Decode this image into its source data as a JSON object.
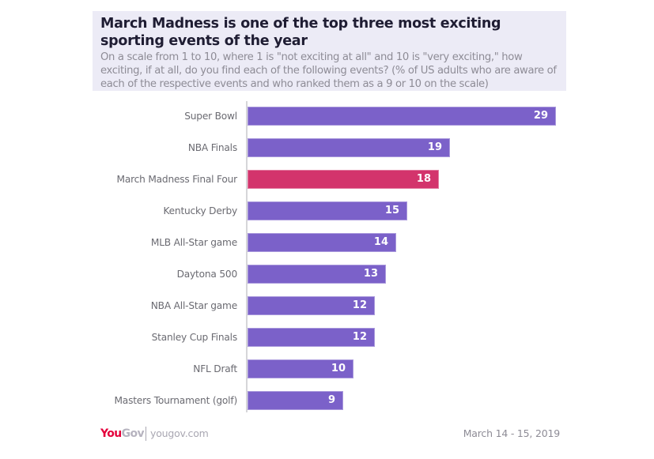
{
  "header": {
    "title": "March Madness is one of the top three most exciting sporting events of the year",
    "subtitle": "On a scale from 1 to 10, where 1 is \"not exciting at all\" and 10 is \"very exciting,\" how exciting, if at all, do you find each of the following events? (% of US adults who are aware of each of the respective events and who ranked them as a 9 or 10 on the scale)"
  },
  "footer": {
    "logo_you": "You",
    "logo_gov": "Gov",
    "url": "yougov.com",
    "date": "March 14 - 15, 2019"
  },
  "colors": {
    "bar_default": "#7B61C9",
    "bar_highlight": "#D3346C",
    "header_bg": "#ECEBF6",
    "axis": "#D6D6D9",
    "brand_red": "#E4003B"
  },
  "chart_data": {
    "type": "bar",
    "orientation": "horizontal",
    "title": "March Madness is one of the top three most exciting sporting events of the year",
    "subtitle": "On a scale from 1 to 10, where 1 is \"not exciting at all\" and 10 is \"very exciting,\" how exciting, if at all, do you find each of the following events? (% of US adults who are aware of each of the respective events and who ranked them as a 9 or 10 on the scale)",
    "xlabel": "",
    "ylabel": "",
    "xlim": [
      0,
      29
    ],
    "grid": false,
    "legend": null,
    "categories": [
      "Super Bowl",
      "NBA Finals",
      "March Madness Final Four",
      "Kentucky Derby",
      "MLB All-Star game",
      "Daytona 500",
      "NBA All-Star game",
      "Stanley Cup Finals",
      "NFL Draft",
      "Masters Tournament (golf)"
    ],
    "values": [
      29,
      19,
      18,
      15,
      14,
      13,
      12,
      12,
      10,
      9
    ],
    "highlighted": [
      "March Madness Final Four"
    ],
    "data_labels": true,
    "source": "YouGov | yougov.com",
    "date": "March 14 - 15, 2019"
  }
}
